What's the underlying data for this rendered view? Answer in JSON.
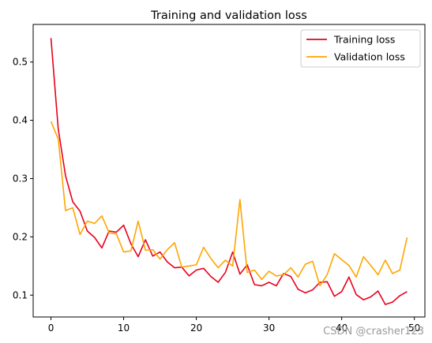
{
  "chart_data": {
    "type": "line",
    "title": "Training and validation loss",
    "xlabel": "",
    "ylabel": "",
    "xlim": [
      -2.45,
      51.45
    ],
    "ylim": [
      0.0625,
      0.5645
    ],
    "xticks": [
      0,
      10,
      20,
      30,
      40,
      50
    ],
    "yticks": [
      0.1,
      0.2,
      0.3,
      0.4,
      0.5
    ],
    "xtick_labels": [
      "0",
      "10",
      "20",
      "30",
      "40",
      "50"
    ],
    "ytick_labels": [
      "0.1",
      "0.2",
      "0.3",
      "0.4",
      "0.5"
    ],
    "grid": false,
    "legend_position": "top-right",
    "x": [
      0,
      1,
      2,
      3,
      4,
      5,
      6,
      7,
      8,
      9,
      10,
      11,
      12,
      13,
      14,
      15,
      16,
      17,
      18,
      19,
      20,
      21,
      22,
      23,
      24,
      25,
      26,
      27,
      28,
      29,
      30,
      31,
      32,
      33,
      34,
      35,
      36,
      37,
      38,
      39,
      40,
      41,
      42,
      43,
      44,
      45,
      46,
      47,
      48,
      49
    ],
    "series": [
      {
        "name": "Training loss",
        "color": "#e8001c",
        "values": [
          0.541,
          0.385,
          0.305,
          0.26,
          0.244,
          0.21,
          0.199,
          0.181,
          0.21,
          0.208,
          0.22,
          0.188,
          0.166,
          0.195,
          0.167,
          0.174,
          0.157,
          0.147,
          0.148,
          0.133,
          0.143,
          0.146,
          0.132,
          0.122,
          0.139,
          0.174,
          0.136,
          0.152,
          0.118,
          0.116,
          0.122,
          0.116,
          0.137,
          0.132,
          0.11,
          0.104,
          0.109,
          0.122,
          0.123,
          0.098,
          0.106,
          0.131,
          0.101,
          0.092,
          0.097,
          0.107,
          0.084,
          0.088,
          0.099,
          0.106
        ]
      },
      {
        "name": "Validation loss",
        "color": "#ffa500",
        "values": [
          0.398,
          0.368,
          0.245,
          0.25,
          0.204,
          0.227,
          0.223,
          0.236,
          0.207,
          0.205,
          0.174,
          0.176,
          0.227,
          0.177,
          0.178,
          0.162,
          0.178,
          0.19,
          0.148,
          0.15,
          0.152,
          0.182,
          0.163,
          0.147,
          0.16,
          0.15,
          0.264,
          0.139,
          0.143,
          0.127,
          0.141,
          0.133,
          0.135,
          0.147,
          0.131,
          0.153,
          0.158,
          0.116,
          0.135,
          0.171,
          0.161,
          0.151,
          0.131,
          0.166,
          0.151,
          0.135,
          0.16,
          0.137,
          0.143,
          0.199
        ]
      }
    ]
  },
  "watermark": "CSDN @crasher123"
}
